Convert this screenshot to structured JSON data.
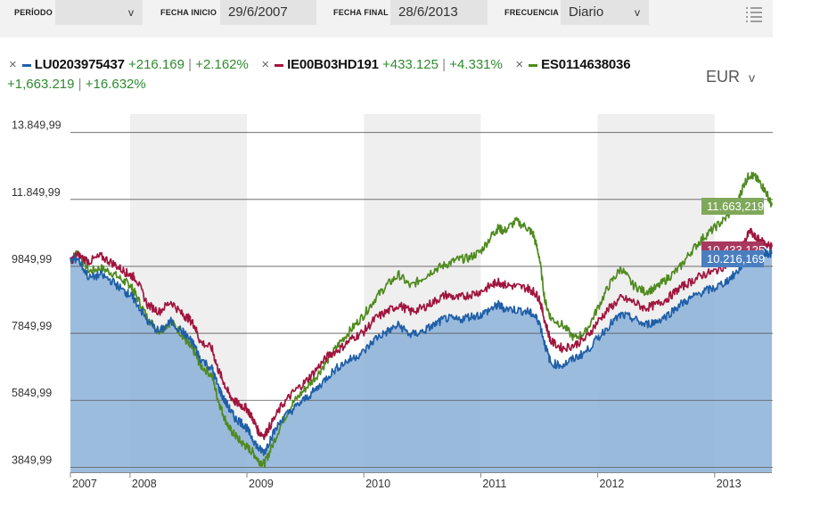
{
  "toolbar": {
    "period_label": "PERÍODO",
    "period_value": "",
    "start_label": "FECHA INICIO",
    "start_value": "29/6/2007",
    "end_label": "FECHA FINAL",
    "end_value": "28/6/2013",
    "freq_label": "FRECUENCIA",
    "freq_value": "Diario",
    "chevron": "v"
  },
  "currency": {
    "value": "EUR",
    "chevron": "v"
  },
  "legend": [
    {
      "code": "LU0203975437",
      "change_abs": "+216.169",
      "change_pct": "+2.162%",
      "color": "#1f5fa8"
    },
    {
      "code": "IE00B03HD191",
      "change_abs": "+433.125",
      "change_pct": "+4.331%",
      "color": "#a0153e"
    },
    {
      "code": "ES0114638036",
      "change_abs": "+1,663.219",
      "change_pct": "+16.632%",
      "color": "#4f8a1f"
    }
  ],
  "legend_close": "×",
  "legend_sep": "|",
  "chart_data": {
    "type": "line",
    "title": "",
    "xlabel": "",
    "ylabel": "",
    "y_tick_labels": [
      "13.849,99",
      "11.849,99",
      "9849,99",
      "7849,99",
      "5849,99",
      "3849,99"
    ],
    "y_ticks": [
      13849.99,
      11849.99,
      9849.99,
      7849.99,
      5849.99,
      3849.99
    ],
    "ylim": [
      3700,
      14400
    ],
    "x_tick_labels": [
      "2007",
      "2008",
      "2009",
      "2010",
      "2011",
      "2012",
      "2013"
    ],
    "x_ticks": [
      2007.5,
      2008.0,
      2009.0,
      2010.0,
      2011.0,
      2012.0,
      2013.0
    ],
    "xlim": [
      2007.49,
      2013.49
    ],
    "end_labels": [
      "11.663,219",
      "10.433,125",
      "10.216,169"
    ],
    "series": [
      {
        "name": "ES0114638036",
        "color": "#4f8a1f",
        "end_value": 11663.219,
        "x": [
          2007.49,
          2007.55,
          2007.65,
          2007.75,
          2007.85,
          2007.95,
          2008.0,
          2008.05,
          2008.15,
          2008.25,
          2008.35,
          2008.45,
          2008.5,
          2008.55,
          2008.6,
          2008.7,
          2008.75,
          2008.8,
          2008.85,
          2008.9,
          2008.95,
          2009.0,
          2009.05,
          2009.1,
          2009.15,
          2009.2,
          2009.3,
          2009.4,
          2009.5,
          2009.6,
          2009.7,
          2009.8,
          2009.9,
          2010.0,
          2010.1,
          2010.2,
          2010.3,
          2010.4,
          2010.5,
          2010.6,
          2010.7,
          2010.8,
          2010.9,
          2011.0,
          2011.1,
          2011.15,
          2011.2,
          2011.3,
          2011.4,
          2011.45,
          2011.5,
          2011.55,
          2011.6,
          2011.7,
          2011.8,
          2011.9,
          2012.0,
          2012.1,
          2012.2,
          2012.3,
          2012.4,
          2012.5,
          2012.6,
          2012.7,
          2012.8,
          2012.9,
          2013.0,
          2013.1,
          2013.2,
          2013.25,
          2013.3,
          2013.35,
          2013.4,
          2013.45,
          2013.49
        ],
        "y": [
          10000,
          10300,
          9700,
          9800,
          9650,
          9400,
          9300,
          9000,
          8300,
          7900,
          8200,
          7800,
          7500,
          7300,
          6900,
          6600,
          5900,
          5400,
          5000,
          4800,
          4600,
          4450,
          4300,
          4050,
          3950,
          4350,
          5200,
          5800,
          6200,
          6600,
          7100,
          7600,
          8000,
          8400,
          8900,
          9300,
          9600,
          9250,
          9500,
          9750,
          9900,
          10050,
          10100,
          10300,
          10800,
          11000,
          10900,
          11200,
          11000,
          10800,
          10150,
          8800,
          8300,
          8100,
          7700,
          7900,
          8600,
          9300,
          9800,
          9300,
          9100,
          9200,
          9500,
          9800,
          10300,
          10700,
          11000,
          11300,
          11800,
          12300,
          12600,
          12500,
          12300,
          12000,
          11663
        ]
      },
      {
        "name": "IE00B03HD191",
        "color": "#a0153e",
        "end_value": 10433.125,
        "x": [
          2007.49,
          2007.55,
          2007.65,
          2007.75,
          2007.85,
          2007.95,
          2008.0,
          2008.05,
          2008.15,
          2008.25,
          2008.35,
          2008.45,
          2008.5,
          2008.55,
          2008.6,
          2008.7,
          2008.75,
          2008.8,
          2008.85,
          2008.9,
          2008.95,
          2009.0,
          2009.05,
          2009.1,
          2009.15,
          2009.2,
          2009.3,
          2009.4,
          2009.5,
          2009.6,
          2009.7,
          2009.8,
          2009.9,
          2010.0,
          2010.1,
          2010.2,
          2010.3,
          2010.4,
          2010.5,
          2010.6,
          2010.7,
          2010.8,
          2010.9,
          2011.0,
          2011.1,
          2011.15,
          2011.2,
          2011.3,
          2011.4,
          2011.45,
          2011.5,
          2011.55,
          2011.6,
          2011.7,
          2011.8,
          2011.9,
          2012.0,
          2012.1,
          2012.2,
          2012.3,
          2012.4,
          2012.5,
          2012.6,
          2012.7,
          2012.8,
          2012.9,
          2013.0,
          2013.1,
          2013.2,
          2013.25,
          2013.3,
          2013.35,
          2013.4,
          2013.45,
          2013.49
        ],
        "y": [
          10000,
          10200,
          10000,
          10150,
          9950,
          9700,
          9600,
          9500,
          8700,
          8500,
          8800,
          8400,
          8300,
          8100,
          7600,
          7400,
          6800,
          6400,
          6000,
          5800,
          5700,
          5600,
          5300,
          4900,
          4800,
          5100,
          5700,
          6100,
          6400,
          6800,
          7200,
          7400,
          7700,
          7900,
          8300,
          8500,
          8700,
          8500,
          8600,
          8800,
          9000,
          8900,
          9000,
          9100,
          9300,
          9400,
          9300,
          9250,
          9200,
          9100,
          8900,
          8200,
          7600,
          7400,
          7500,
          7700,
          8200,
          8600,
          8900,
          8800,
          8600,
          8700,
          8900,
          9200,
          9400,
          9600,
          9700,
          9900,
          10200,
          10500,
          10900,
          10700,
          10600,
          10500,
          10433
        ]
      },
      {
        "name": "LU0203975437",
        "color": "#1f5fa8",
        "end_value": 10216.169,
        "x": [
          2007.49,
          2007.55,
          2007.65,
          2007.75,
          2007.85,
          2007.95,
          2008.0,
          2008.05,
          2008.15,
          2008.25,
          2008.35,
          2008.45,
          2008.5,
          2008.55,
          2008.6,
          2008.7,
          2008.75,
          2008.8,
          2008.85,
          2008.9,
          2008.95,
          2009.0,
          2009.05,
          2009.1,
          2009.15,
          2009.2,
          2009.3,
          2009.4,
          2009.5,
          2009.6,
          2009.7,
          2009.8,
          2009.9,
          2010.0,
          2010.1,
          2010.2,
          2010.3,
          2010.4,
          2010.5,
          2010.6,
          2010.7,
          2010.8,
          2010.9,
          2011.0,
          2011.1,
          2011.15,
          2011.2,
          2011.3,
          2011.4,
          2011.45,
          2011.5,
          2011.55,
          2011.6,
          2011.7,
          2011.8,
          2011.9,
          2012.0,
          2012.1,
          2012.2,
          2012.3,
          2012.4,
          2012.5,
          2012.6,
          2012.7,
          2012.8,
          2012.9,
          2013.0,
          2013.1,
          2013.2,
          2013.25,
          2013.3,
          2013.35,
          2013.4,
          2013.45,
          2013.49
        ],
        "y": [
          10000,
          10100,
          9500,
          9600,
          9400,
          9100,
          9000,
          8800,
          8200,
          7900,
          8200,
          7900,
          7700,
          7500,
          7100,
          6800,
          6300,
          5900,
          5600,
          5300,
          5200,
          5000,
          4700,
          4400,
          4300,
          4700,
          5300,
          5600,
          5900,
          6200,
          6600,
          6900,
          7100,
          7300,
          7700,
          7900,
          8100,
          7800,
          7900,
          8100,
          8300,
          8250,
          8350,
          8400,
          8600,
          8700,
          8600,
          8550,
          8500,
          8400,
          8200,
          7500,
          6950,
          6900,
          7100,
          7300,
          7700,
          8100,
          8400,
          8300,
          8100,
          8200,
          8400,
          8700,
          8900,
          9100,
          9200,
          9400,
          9700,
          10000,
          10400,
          10300,
          10300,
          10250,
          10216
        ]
      }
    ]
  }
}
